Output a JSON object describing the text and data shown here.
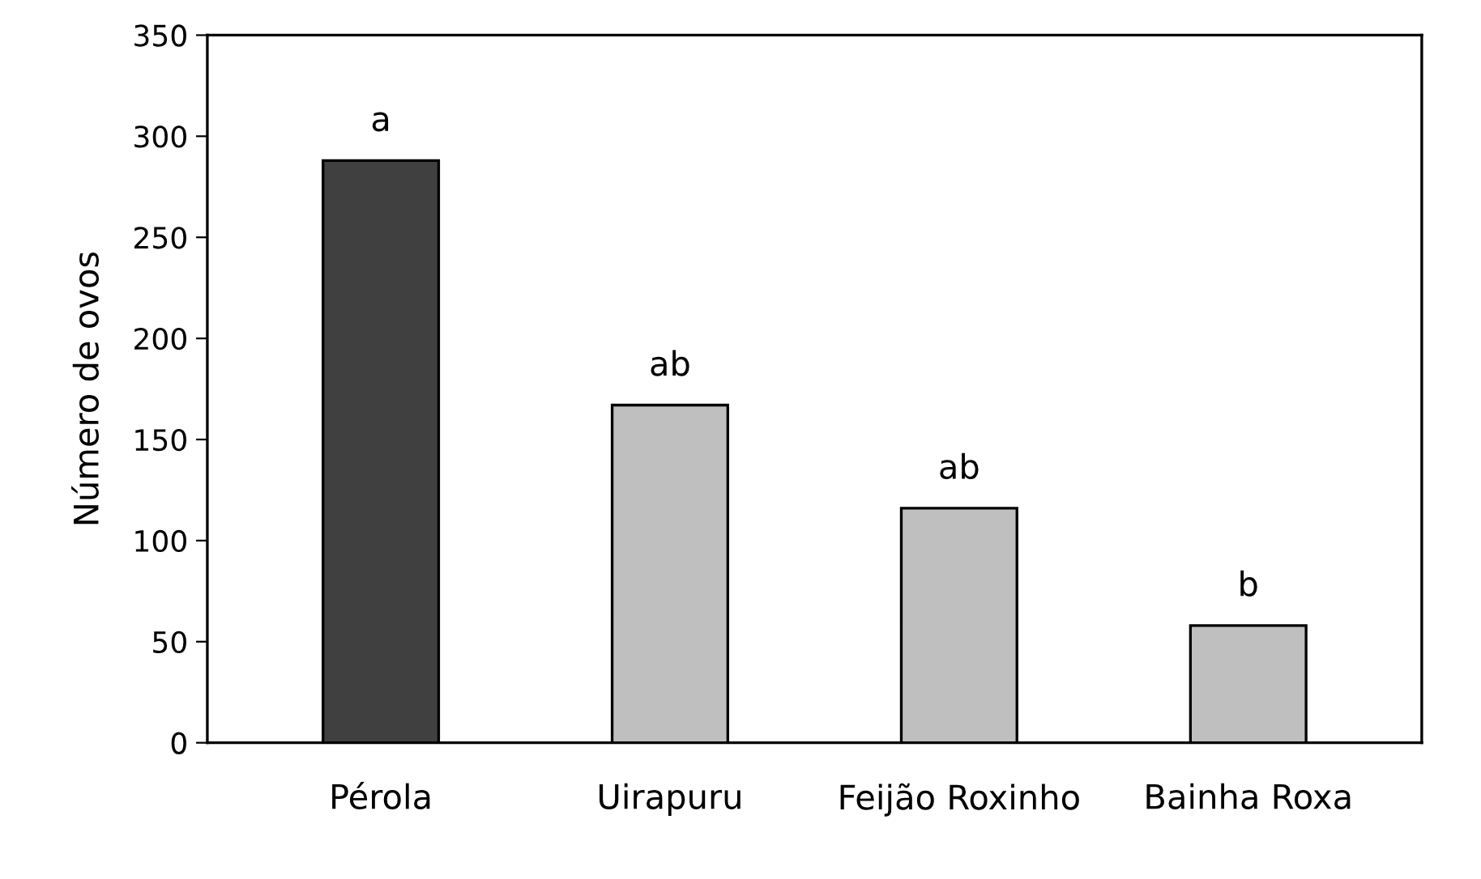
{
  "chart_data": {
    "type": "bar",
    "ylabel": "Número de ovos",
    "categories": [
      "Pérola",
      "Uirapuru",
      "Feijão Roxinho",
      "Bainha Roxa"
    ],
    "values": [
      288,
      167,
      116,
      58
    ],
    "colors": [
      "#404040",
      "#bfbfbf",
      "#bfbfbf",
      "#bfbfbf"
    ],
    "ylim": [
      0,
      350
    ],
    "yticks": [
      0,
      50,
      100,
      150,
      200,
      250,
      300,
      350
    ],
    "grid": false,
    "annotations": [
      {
        "text": "a",
        "x": "Pérola",
        "y": 288
      },
      {
        "text": "ab",
        "x": "Uirapuru",
        "y": 167
      },
      {
        "text": "ab",
        "x": "Feijão Roxinho",
        "y": 116
      },
      {
        "text": "b",
        "x": "Bainha Roxa",
        "y": 58
      }
    ]
  }
}
